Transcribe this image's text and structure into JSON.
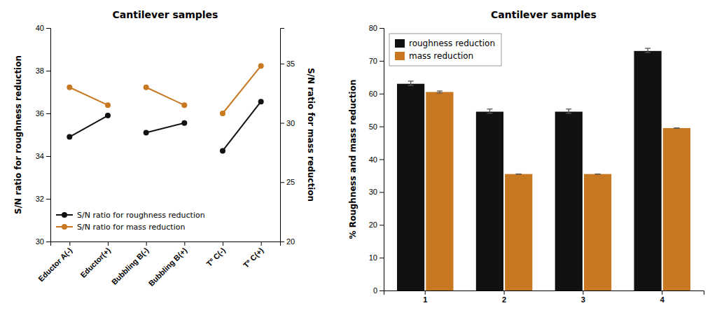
{
  "chart_data": [
    {
      "type": "line",
      "title": "Cantilever samples",
      "categories": [
        "Eductor A(-)",
        "Eductor(+)",
        "Bubbling B(-)",
        "Bubbling B(+)",
        "Tº C(-)",
        "Tº C(+)"
      ],
      "series": [
        {
          "name": "S/N ratio for roughness reduction",
          "color": "#111111",
          "marker": "circle",
          "values": [
            34.9,
            35.9,
            35.1,
            35.55,
            34.25,
            36.55
          ]
        },
        {
          "name": "S/N ratio for mass reduction",
          "color": "#c87820",
          "marker": "circle",
          "axis": "y2",
          "values": [
            33.0,
            31.5,
            33.0,
            31.5,
            30.8,
            34.8
          ]
        }
      ],
      "ylabel": "S/N ratio for roughness reduction",
      "y2label": "S/N ratio for mass reduction",
      "ylim": [
        30,
        40
      ],
      "yticks": [
        30,
        32,
        34,
        36,
        38,
        40
      ],
      "y2lim": [
        20,
        38
      ],
      "y2ticks": [
        20,
        25,
        30,
        35
      ],
      "grid": false,
      "legend": "lower left"
    },
    {
      "type": "bar",
      "title": "Cantilever samples",
      "categories": [
        "1",
        "2",
        "3",
        "4"
      ],
      "series": [
        {
          "name": "roughness reduction",
          "color": "#111111",
          "values": [
            63.0,
            54.5,
            54.5,
            73.0
          ],
          "errors_low": [
            0.5,
            0.5,
            0.5,
            0.5
          ],
          "errors_high": [
            0.8,
            0.8,
            0.8,
            0.8
          ]
        },
        {
          "name": "mass reduction",
          "color": "#c87820",
          "values": [
            60.5,
            35.5,
            35.5,
            49.5
          ],
          "errors_low": [
            0.3,
            0.0,
            0.0,
            0.0
          ],
          "errors_high": [
            0.3,
            0.0,
            0.0,
            0.0
          ]
        }
      ],
      "ylabel": "% Roughness and mass reduction",
      "ylim": [
        0,
        80
      ],
      "yticks": [
        0,
        10,
        20,
        30,
        40,
        50,
        60,
        70,
        80
      ],
      "grid": false,
      "legend": "upper left"
    }
  ]
}
